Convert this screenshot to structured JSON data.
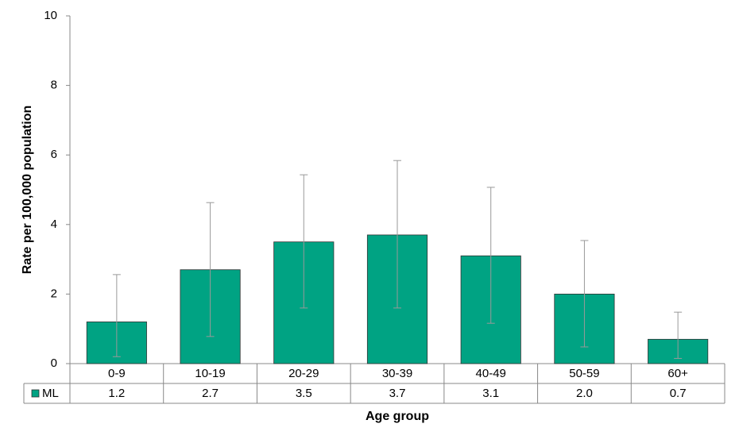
{
  "chart_data": {
    "type": "bar",
    "x_label": "Age group",
    "y_label": "Rate per 100,000 population",
    "categories": [
      "0-9",
      "10-19",
      "20-29",
      "30-39",
      "40-49",
      "50-59",
      "60+"
    ],
    "series": [
      {
        "name": "ML",
        "color": "#00a383",
        "values": [
          1.2,
          2.7,
          3.5,
          3.7,
          3.1,
          2.0,
          0.7
        ],
        "value_labels": [
          "1.2",
          "2.7",
          "3.5",
          "3.7",
          "3.1",
          "2.0",
          "0.7"
        ],
        "ci_lower": [
          0.2,
          0.78,
          1.6,
          1.6,
          1.16,
          0.48,
          0.15
        ],
        "ci_upper": [
          2.56,
          4.63,
          5.43,
          5.84,
          5.07,
          3.54,
          1.48
        ]
      }
    ],
    "ylim": [
      0,
      10
    ],
    "yticks": [
      0,
      2,
      4,
      6,
      8,
      10
    ],
    "grid": false
  }
}
